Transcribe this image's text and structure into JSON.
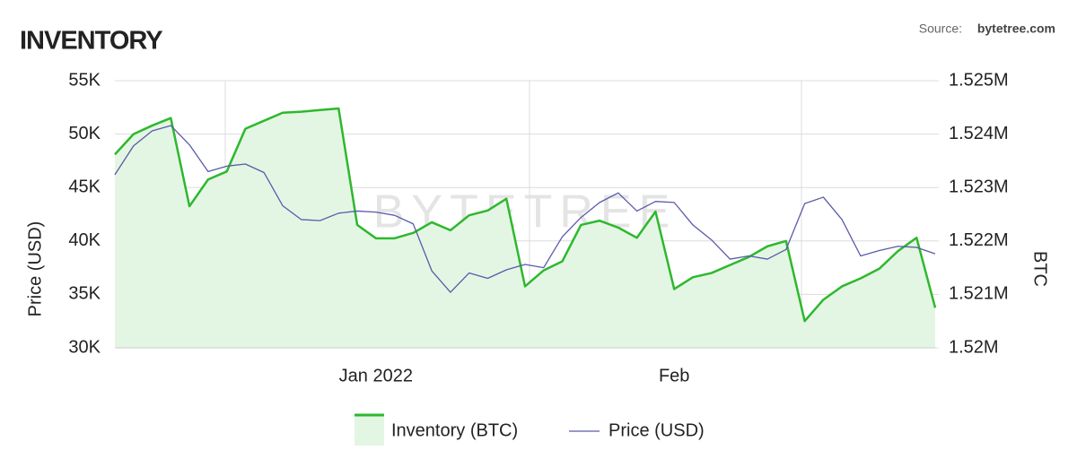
{
  "chart_data": {
    "type": "line",
    "title": "INVENTORY",
    "source_label": "Source:",
    "source": "bytetree.com",
    "watermark": "BYTETREE",
    "y_label": "Price (USD)",
    "y2_label": "BTC",
    "categories": [
      null,
      null,
      null,
      null,
      null,
      null,
      null,
      null,
      null,
      null,
      null,
      null,
      null,
      null,
      "Jan 2022",
      null,
      null,
      null,
      null,
      null,
      null,
      null,
      null,
      null,
      null,
      null,
      null,
      null,
      null,
      null,
      "Feb",
      null,
      null,
      null,
      null,
      null,
      null,
      null,
      null,
      null,
      null,
      null,
      null,
      null,
      null
    ],
    "series": [
      {
        "name": "Inventory (BTC)",
        "color": "#2eb82e",
        "fill": "#e3f6e3",
        "axis": "y2",
        "values": [
          1523620,
          1524000,
          1524160,
          1524300,
          1522650,
          1523150,
          1523300,
          1524100,
          1524250,
          1524400,
          1524420,
          1524450,
          1524480,
          1522300,
          1522050,
          1522050,
          1522150,
          1522350,
          1522200,
          1522480,
          1522570,
          1522790,
          1521150,
          1521450,
          1521620,
          1522300,
          1522380,
          1522250,
          1522060,
          1522550,
          1521100,
          1521320,
          1521400,
          1521550,
          1521700,
          1521900,
          1522000,
          1520500,
          1520900,
          1521150,
          1521300,
          1521480,
          1521810,
          1522060,
          1520750
        ]
      },
      {
        "name": "Price (USD)",
        "color": "#5a5aaa",
        "axis": "y",
        "values": [
          46200,
          48900,
          50300,
          50800,
          49000,
          46500,
          47000,
          47200,
          46400,
          43300,
          42000,
          41900,
          42600,
          42800,
          42700,
          42400,
          41600,
          37200,
          35200,
          37000,
          36500,
          37300,
          37800,
          37500,
          40400,
          42200,
          43600,
          44500,
          42800,
          43700,
          43600,
          41500,
          40100,
          38300,
          38600,
          38300,
          39200,
          43500,
          44100,
          42000,
          38600,
          39100,
          39500,
          39400,
          38800
        ]
      }
    ],
    "ylim": [
      30000,
      55000
    ],
    "yticks": [
      {
        "value": 30000,
        "label": "30K"
      },
      {
        "value": 35000,
        "label": "35K"
      },
      {
        "value": 40000,
        "label": "40K"
      },
      {
        "value": 45000,
        "label": "45K"
      },
      {
        "value": 50000,
        "label": "50K"
      },
      {
        "value": 55000,
        "label": "55K"
      }
    ],
    "y2lim": [
      1520000,
      1525000
    ],
    "y2ticks": [
      {
        "value": 1520000,
        "label": "1.52M"
      },
      {
        "value": 1521000,
        "label": "1.521M"
      },
      {
        "value": 1522000,
        "label": "1.522M"
      },
      {
        "value": 1523000,
        "label": "1.523M"
      },
      {
        "value": 1524000,
        "label": "1.524M"
      },
      {
        "value": 1525000,
        "label": "1.525M"
      }
    ],
    "grid": true
  }
}
